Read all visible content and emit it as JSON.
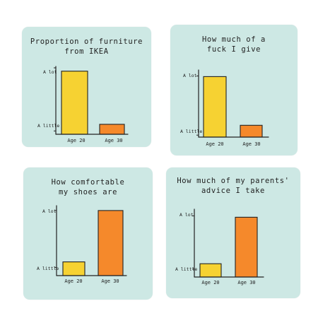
{
  "background": "#ffffff",
  "panel_color": "#cde8e4",
  "colors": {
    "age20": "#f6d232",
    "age30": "#f5892b",
    "ink": "#222222"
  },
  "chart_data": [
    {
      "type": "bar",
      "title": "Proportion of furniture\nfrom IKEA",
      "categories": [
        "Age 20",
        "Age 30"
      ],
      "values": [
        0.95,
        0.15
      ],
      "ylim": [
        0,
        1
      ],
      "ytick_labels": [
        "A little",
        "A lot"
      ],
      "ytick_values": [
        0.05,
        1.0
      ],
      "colors": [
        "#f6d232",
        "#f5892b"
      ],
      "grid": false
    },
    {
      "type": "bar",
      "title": "How much of a\nfuck I give",
      "categories": [
        "Age 20",
        "Age 30"
      ],
      "values": [
        0.92,
        0.18
      ],
      "ylim": [
        0,
        1
      ],
      "ytick_labels": [
        "A little",
        "A lot"
      ],
      "ytick_values": [
        0.03,
        0.93
      ],
      "colors": [
        "#f6d232",
        "#f5892b"
      ],
      "grid": false
    },
    {
      "type": "bar",
      "title": "How comfortable\nmy shoes are",
      "categories": [
        "Age 20",
        "Age 30"
      ],
      "values": [
        0.2,
        0.95
      ],
      "ylim": [
        0,
        1
      ],
      "ytick_labels": [
        "A little",
        "A lot"
      ],
      "ytick_values": [
        0.12,
        0.95
      ],
      "colors": [
        "#f6d232",
        "#f5892b"
      ],
      "grid": false
    },
    {
      "type": "bar",
      "title": "How much of my parents'\nadvice I take",
      "categories": [
        "Age 20",
        "Age 30"
      ],
      "values": [
        0.2,
        0.9
      ],
      "ylim": [
        0,
        1
      ],
      "ytick_labels": [
        "A little",
        "A lot"
      ],
      "ytick_values": [
        0.12,
        0.92
      ],
      "colors": [
        "#f6d232",
        "#f5892b"
      ],
      "grid": false
    }
  ]
}
